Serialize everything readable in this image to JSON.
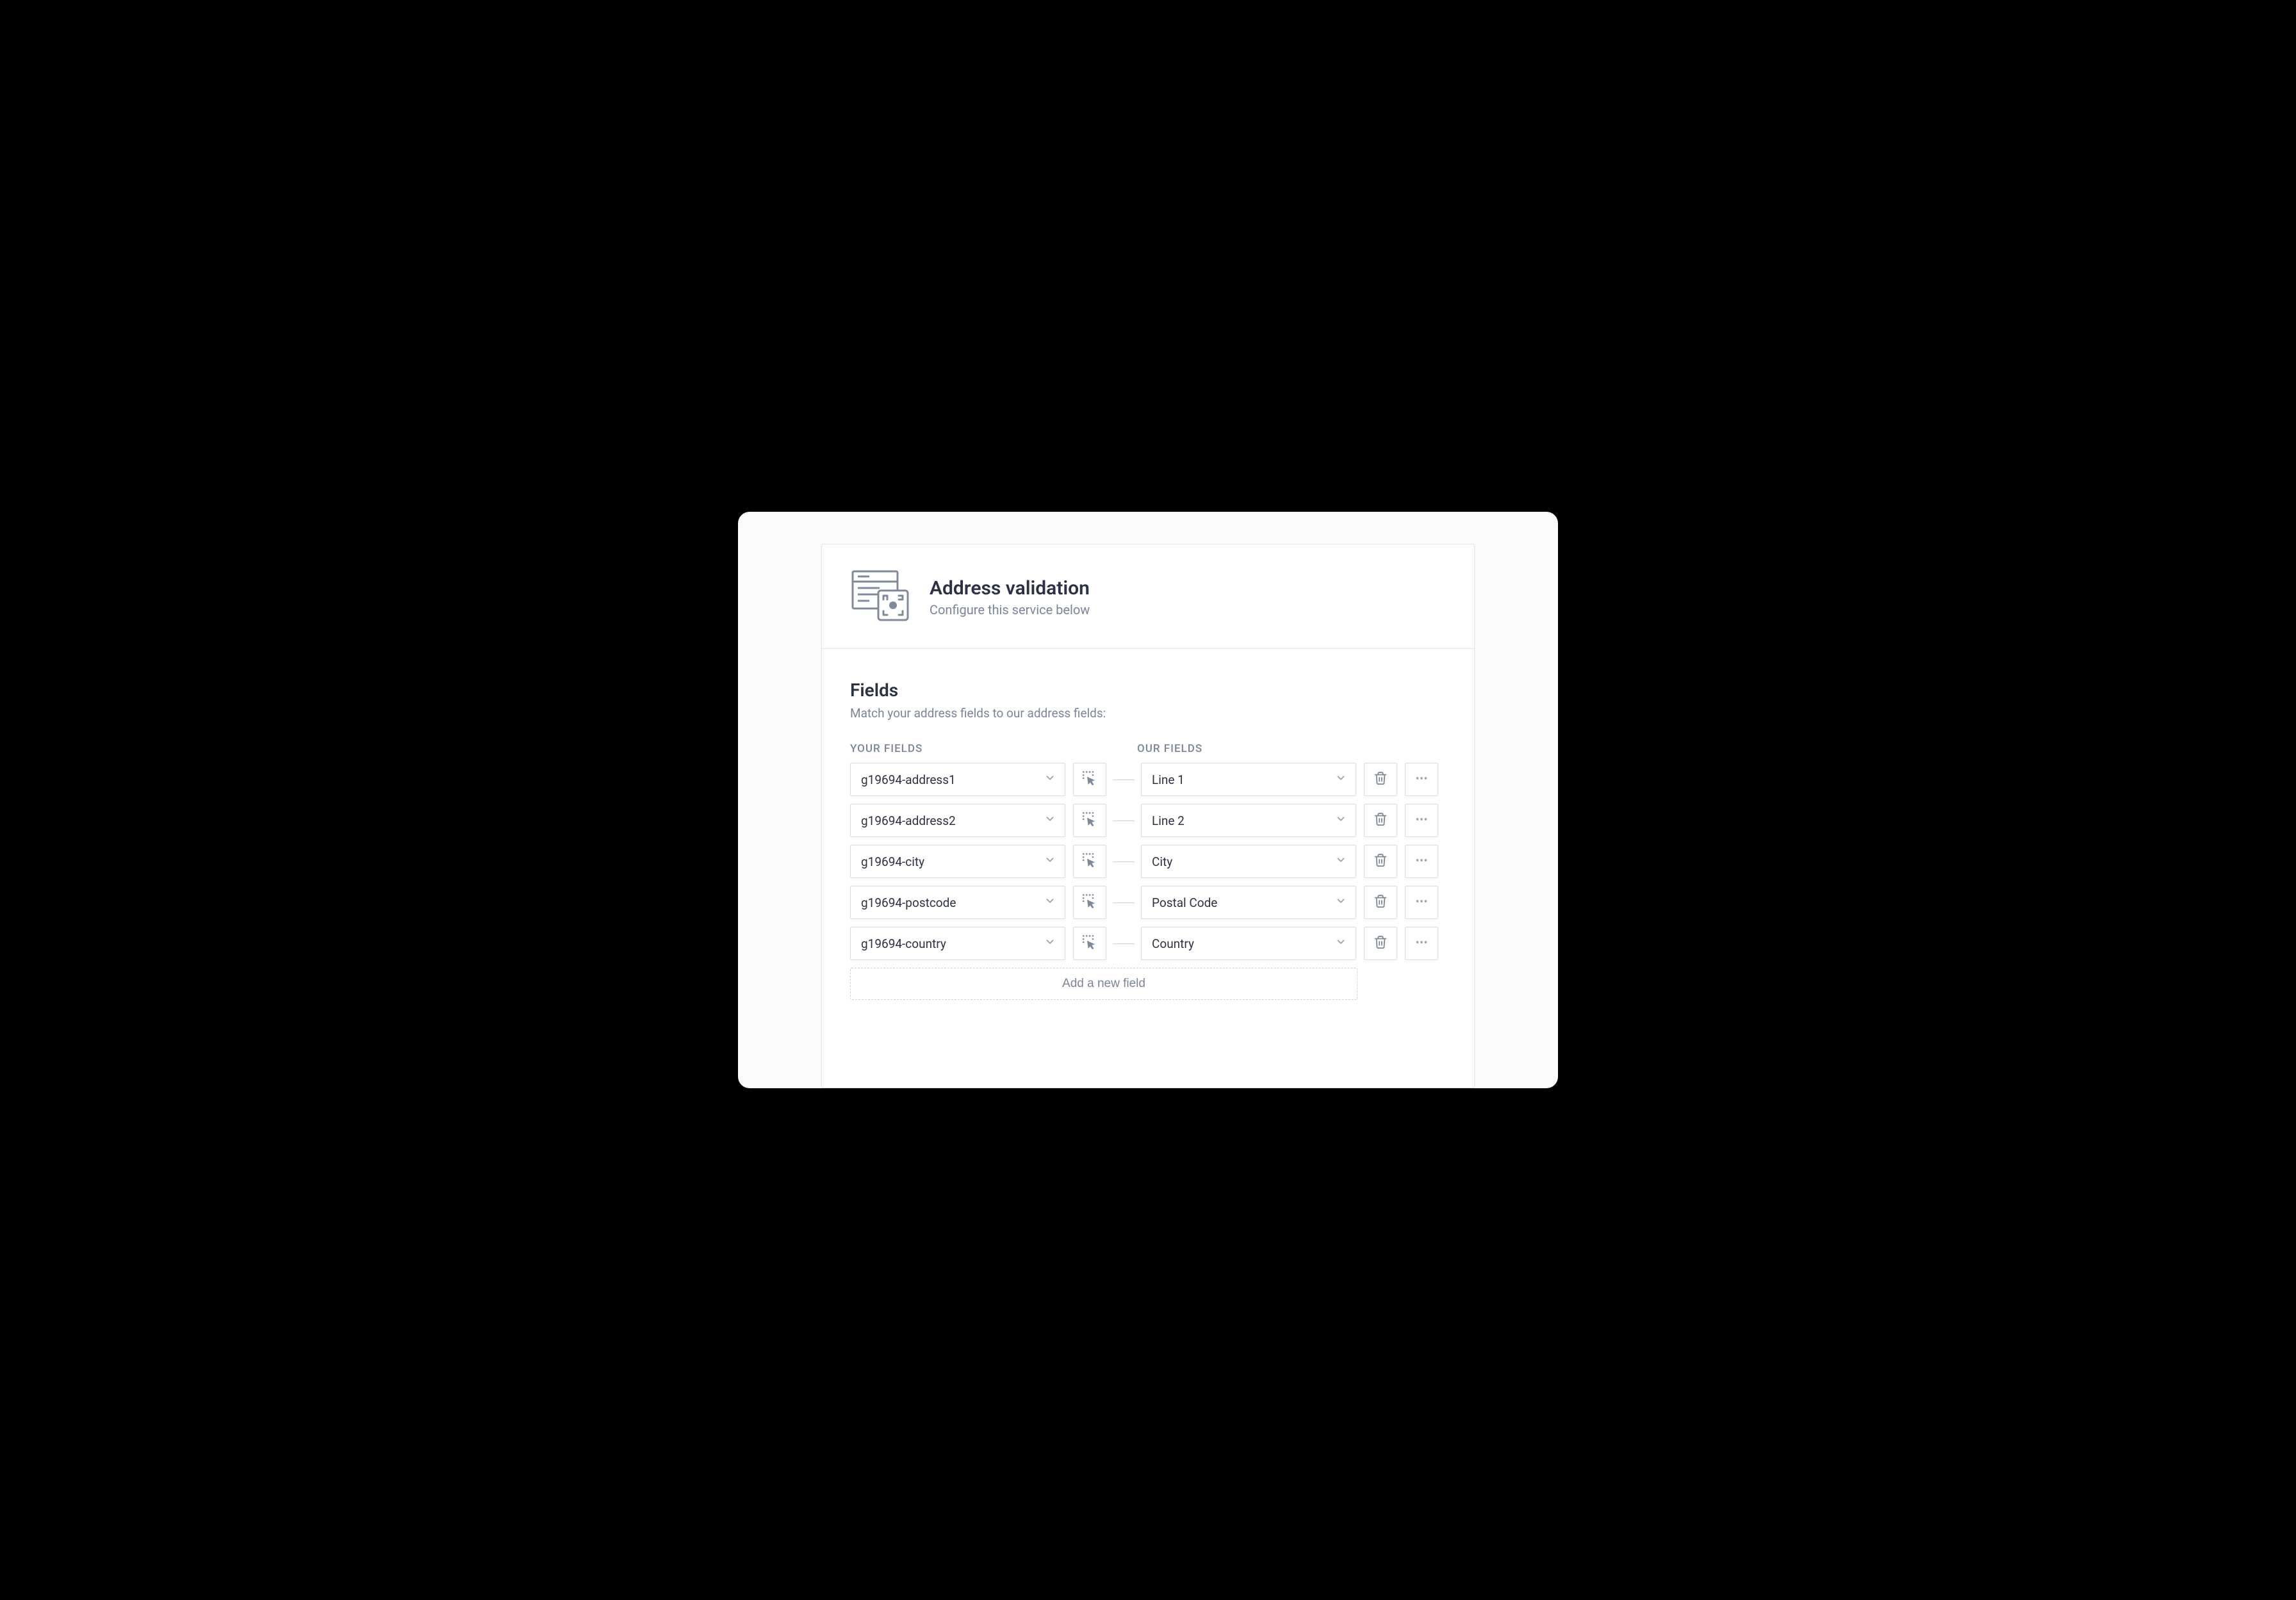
{
  "header": {
    "title": "Address validation",
    "subtitle": "Configure this service below"
  },
  "fields_section": {
    "title": "Fields",
    "description": "Match your address fields to our address fields:",
    "left_col_label": "YOUR FIELDS",
    "right_col_label": "OUR FIELDS",
    "add_label": "Add a new field"
  },
  "rows": [
    {
      "your_field": "g19694-address1",
      "our_field": "Line 1"
    },
    {
      "your_field": "g19694-address2",
      "our_field": "Line 2"
    },
    {
      "your_field": "g19694-city",
      "our_field": "City"
    },
    {
      "your_field": "g19694-postcode",
      "our_field": "Postal Code"
    },
    {
      "your_field": "g19694-country",
      "our_field": "Country"
    }
  ],
  "colors": {
    "text_primary": "#2b3245",
    "text_secondary": "#7a8599",
    "border": "#d8dde4",
    "divider": "#e2e6ea",
    "connector": "#cbd2db",
    "icon": "#7f8a9c",
    "page_bg": "#fafbfc",
    "card_bg": "#ffffff"
  }
}
